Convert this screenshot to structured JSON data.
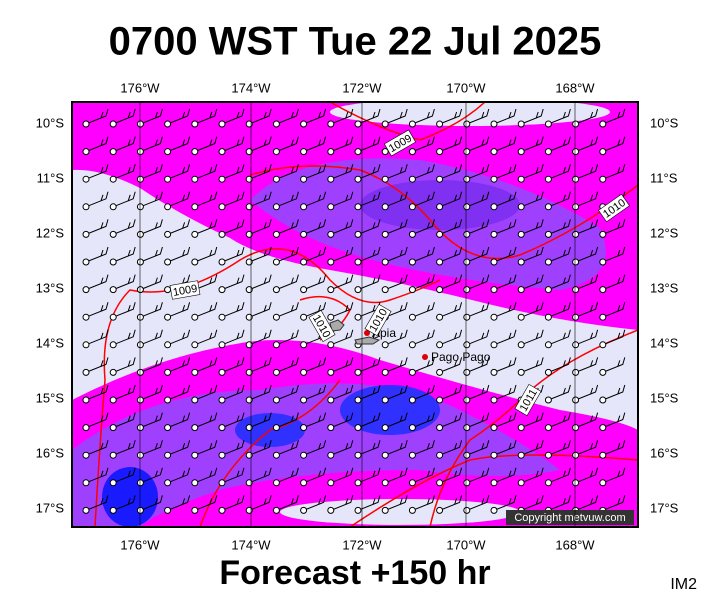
{
  "header": {
    "title": "0700 WST Tue 22 Jul 2025"
  },
  "map": {
    "longitude_labels": [
      "176°W",
      "174°W",
      "172°W",
      "170°W",
      "168°W"
    ],
    "latitude_labels": [
      "10°S",
      "11°S",
      "12°S",
      "13°S",
      "14°S",
      "15°S",
      "16°S",
      "17°S"
    ],
    "isobar_labels": [
      "1009",
      "1010",
      "1009",
      "1010",
      "1010",
      "1011"
    ],
    "places": [
      "Apia",
      "Pago Pago"
    ],
    "copyright": "Copyright metvuw.com"
  },
  "footer": {
    "forecast": "Forecast +150 hr",
    "code": "IM2"
  }
}
